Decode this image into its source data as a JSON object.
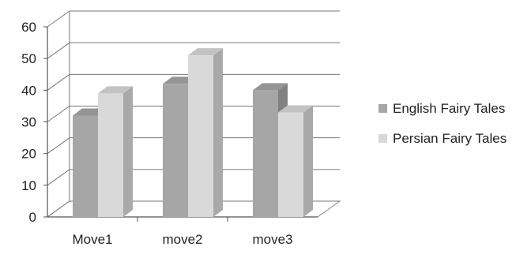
{
  "chart_data": {
    "type": "bar",
    "three_d": true,
    "categories": [
      "Move1",
      "move2",
      "move3"
    ],
    "series": [
      {
        "name": "English Fairy Tales",
        "values": [
          32,
          42,
          40
        ],
        "color": "#a6a6a6"
      },
      {
        "name": "Persian Fairy Tales",
        "values": [
          39,
          51,
          33
        ],
        "color": "#d9d9d9"
      }
    ],
    "ylim": [
      0,
      60
    ],
    "yticks": [
      0,
      10,
      20,
      30,
      40,
      50,
      60
    ],
    "grid": true,
    "legend_position": "right"
  }
}
